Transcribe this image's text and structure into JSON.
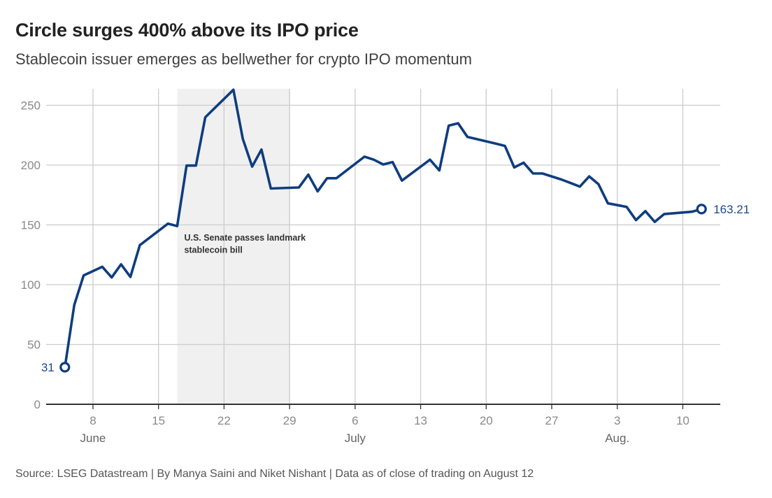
{
  "title": "Circle surges 400% above its IPO price",
  "subtitle": "Stablecoin issuer emerges as bellwether for crypto IPO momentum",
  "source": "Source: LSEG Datastream | By Manya Saini and Niket Nishant | Data as of close of trading on August 12",
  "colors": {
    "line": "#0f3d7e",
    "grid": "#cccccc",
    "highlight": "#f0f0f0",
    "axis": "#333333"
  },
  "chart_data": {
    "type": "line",
    "title": "Circle surges 400% above its IPO price",
    "subtitle": "Stablecoin issuer emerges as bellwether for crypto IPO momentum",
    "xlabel": "",
    "ylabel": "",
    "ylim": [
      0,
      260
    ],
    "yticks": [
      0,
      50,
      100,
      150,
      200,
      250
    ],
    "xlim": [
      "2025-06-03",
      "2025-08-14"
    ],
    "xticks": [
      {
        "date": "2025-06-08",
        "label": "8",
        "month": "June"
      },
      {
        "date": "2025-06-15",
        "label": "15",
        "month": ""
      },
      {
        "date": "2025-06-22",
        "label": "22",
        "month": ""
      },
      {
        "date": "2025-06-29",
        "label": "29",
        "month": ""
      },
      {
        "date": "2025-07-06",
        "label": "6",
        "month": "July"
      },
      {
        "date": "2025-07-13",
        "label": "13",
        "month": ""
      },
      {
        "date": "2025-07-20",
        "label": "20",
        "month": ""
      },
      {
        "date": "2025-07-27",
        "label": "27",
        "month": ""
      },
      {
        "date": "2025-08-03",
        "label": "3",
        "month": "Aug."
      },
      {
        "date": "2025-08-10",
        "label": "10",
        "month": ""
      }
    ],
    "grid": true,
    "legend": "none",
    "highlight_period": {
      "start": "2025-06-17",
      "end": "2025-06-29",
      "label": "U.S. Senate passes landmark stablecoin bill"
    },
    "series": [
      {
        "name": "",
        "points": [
          [
            "2025-06-05",
            31
          ],
          [
            "2025-06-06",
            83
          ],
          [
            "2025-06-07",
            107.7
          ],
          [
            "2025-06-09",
            115
          ],
          [
            "2025-06-10",
            106
          ],
          [
            "2025-06-11",
            117
          ],
          [
            "2025-06-12",
            106.5
          ],
          [
            "2025-06-13",
            133
          ],
          [
            "2025-06-16",
            151
          ],
          [
            "2025-06-17",
            149
          ],
          [
            "2025-06-18",
            199.6
          ],
          [
            "2025-06-19",
            199.6
          ],
          [
            "2025-06-20",
            240
          ],
          [
            "2025-06-23",
            263
          ],
          [
            "2025-06-24",
            222
          ],
          [
            "2025-06-25",
            198.7
          ],
          [
            "2025-06-26",
            213
          ],
          [
            "2025-06-27",
            180.4
          ],
          [
            "2025-06-30",
            181.3
          ],
          [
            "2025-07-01",
            192
          ],
          [
            "2025-07-02",
            178
          ],
          [
            "2025-07-03",
            189
          ],
          [
            "2025-07-04",
            189
          ],
          [
            "2025-07-07",
            207
          ],
          [
            "2025-07-08",
            204.5
          ],
          [
            "2025-07-09",
            200.5
          ],
          [
            "2025-07-10",
            202.5
          ],
          [
            "2025-07-11",
            187
          ],
          [
            "2025-07-14",
            204.5
          ],
          [
            "2025-07-15",
            195.5
          ],
          [
            "2025-07-16",
            233
          ],
          [
            "2025-07-17",
            235
          ],
          [
            "2025-07-18",
            223.5
          ],
          [
            "2025-07-21",
            218
          ],
          [
            "2025-07-22",
            216
          ],
          [
            "2025-07-23",
            198
          ],
          [
            "2025-07-24",
            202
          ],
          [
            "2025-07-25",
            193
          ],
          [
            "2025-07-26",
            193
          ],
          [
            "2025-07-28",
            188
          ],
          [
            "2025-07-29",
            185
          ],
          [
            "2025-07-30",
            182
          ],
          [
            "2025-07-31",
            190.5
          ],
          [
            "2025-08-01",
            184
          ],
          [
            "2025-08-02",
            168
          ],
          [
            "2025-08-04",
            165
          ],
          [
            "2025-08-05",
            154
          ],
          [
            "2025-08-06",
            161.5
          ],
          [
            "2025-08-07",
            152.5
          ],
          [
            "2025-08-08",
            159
          ],
          [
            "2025-08-11",
            161
          ],
          [
            "2025-08-12",
            163.21
          ]
        ]
      }
    ],
    "annotations": [
      {
        "date": "2025-06-05",
        "value": 31,
        "label": "31"
      },
      {
        "date": "2025-08-12",
        "value": 163.21,
        "label": "163.21"
      }
    ]
  }
}
